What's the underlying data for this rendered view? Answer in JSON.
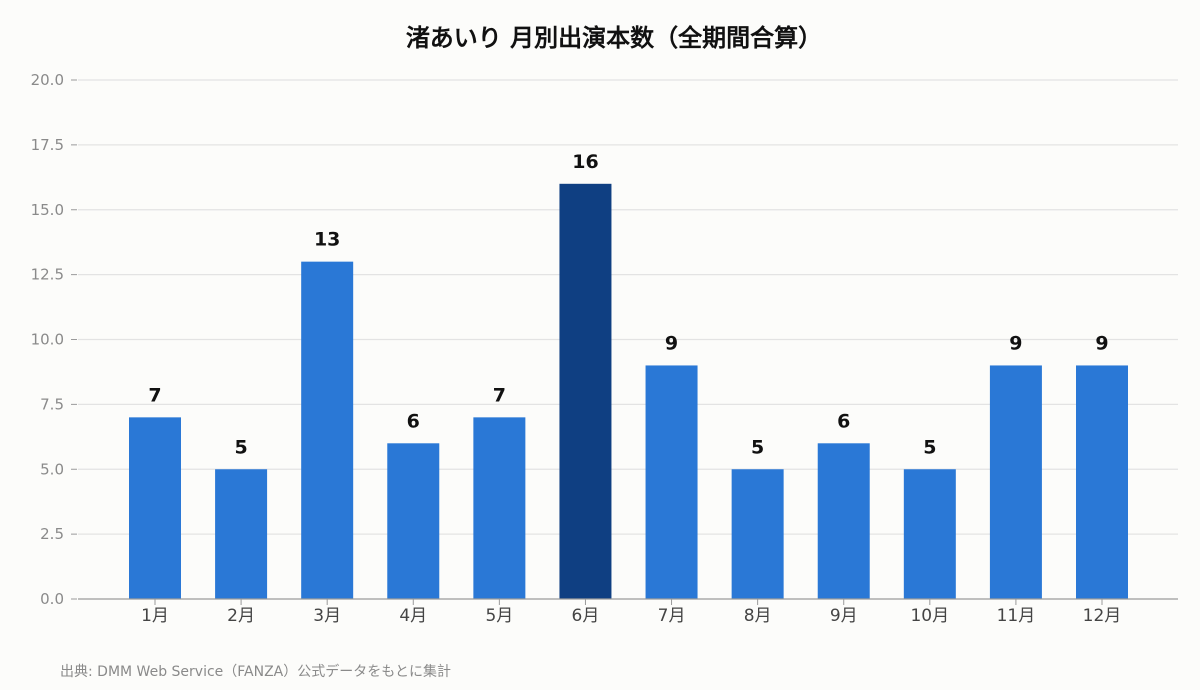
{
  "chart_data": {
    "type": "bar",
    "title": "渚あいり 月別出演本数（全期間合算）",
    "categories": [
      "1月",
      "2月",
      "3月",
      "4月",
      "5月",
      "6月",
      "7月",
      "8月",
      "9月",
      "10月",
      "11月",
      "12月"
    ],
    "values": [
      7,
      5,
      13,
      6,
      7,
      16,
      9,
      5,
      6,
      5,
      9,
      9
    ],
    "data_labels": [
      "7",
      "5",
      "13",
      "6",
      "7",
      "16",
      "9",
      "5",
      "6",
      "5",
      "9",
      "9"
    ],
    "yticks": [
      "0.0",
      "2.5",
      "5.0",
      "7.5",
      "10.0",
      "12.5",
      "15.0",
      "17.5",
      "20.0"
    ],
    "ylim": [
      0,
      20
    ],
    "grid": true,
    "highlight_index": 5,
    "colors": {
      "bar": "#2a78d6",
      "highlight": "#0f3f82",
      "grid": "#e3e3e3",
      "axis": "#9a9a9a"
    },
    "source": "出典: DMM Web Service（FANZA）公式データをもとに集計"
  }
}
